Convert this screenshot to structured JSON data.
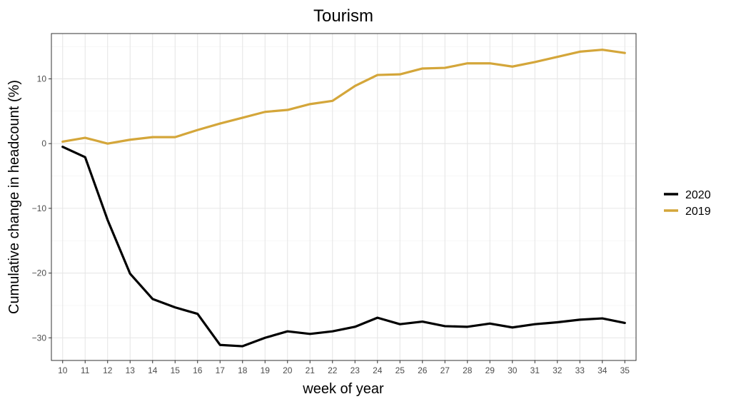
{
  "chart_data": {
    "type": "line",
    "title": "Tourism",
    "xlabel": "week of year",
    "ylabel": "Cumulative change in headcount (%)",
    "x": [
      10,
      11,
      12,
      13,
      14,
      15,
      16,
      17,
      18,
      19,
      20,
      21,
      22,
      23,
      24,
      25,
      26,
      27,
      28,
      29,
      30,
      31,
      32,
      33,
      34,
      35
    ],
    "xlim": [
      9.5,
      35.5
    ],
    "ylim": [
      -33.5,
      17
    ],
    "yticks": [
      -30,
      -20,
      -10,
      0,
      10
    ],
    "ytick_labels": [
      "−30",
      "−20",
      "−10",
      "0",
      "10"
    ],
    "grid": true,
    "legend": {
      "position": "right"
    },
    "series": [
      {
        "name": "2020",
        "color": "#000000",
        "values": [
          -0.5,
          -2.1,
          -11.8,
          -20.1,
          -24.0,
          -25.3,
          -26.3,
          -31.1,
          -31.3,
          -30.0,
          -29.0,
          -29.4,
          -29.0,
          -28.3,
          -26.9,
          -27.9,
          -27.5,
          -28.2,
          -28.3,
          -27.8,
          -28.4,
          -27.9,
          -27.6,
          -27.2,
          -27.0,
          -27.7
        ]
      },
      {
        "name": "2019",
        "color": "#D4A63A",
        "values": [
          0.3,
          0.9,
          0.0,
          0.6,
          1.0,
          1.0,
          2.1,
          3.1,
          4.0,
          4.9,
          5.2,
          6.1,
          6.6,
          8.9,
          10.6,
          10.7,
          11.6,
          11.7,
          12.4,
          12.4,
          11.9,
          12.6,
          13.4,
          14.2,
          14.5,
          14.0
        ]
      }
    ]
  }
}
